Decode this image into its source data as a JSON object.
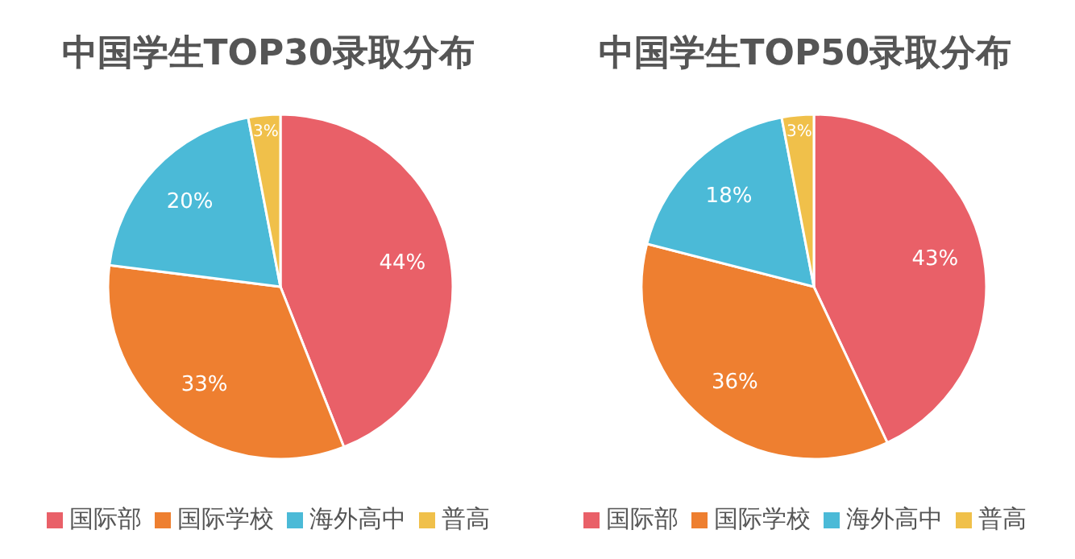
{
  "chart_data": [
    {
      "type": "pie",
      "title": "中国学生TOP30录取分布",
      "categories": [
        "国际部",
        "国际学校",
        "海外高中",
        "普高"
      ],
      "values": [
        44,
        33,
        20,
        3
      ],
      "colors": [
        "#e96068",
        "#ee7f30",
        "#4bbad7",
        "#f0c04a"
      ],
      "value_labels": [
        "44%",
        "33%",
        "20%",
        "3%"
      ],
      "legend": "bottom"
    },
    {
      "type": "pie",
      "title": "中国学生TOP50录取分布",
      "categories": [
        "国际部",
        "国际学校",
        "海外高中",
        "普高"
      ],
      "values": [
        43,
        36,
        18,
        3
      ],
      "colors": [
        "#e96068",
        "#ee7f30",
        "#4bbad7",
        "#f0c04a"
      ],
      "value_labels": [
        "43%",
        "36%",
        "18%",
        "3%"
      ],
      "legend": "bottom"
    }
  ]
}
